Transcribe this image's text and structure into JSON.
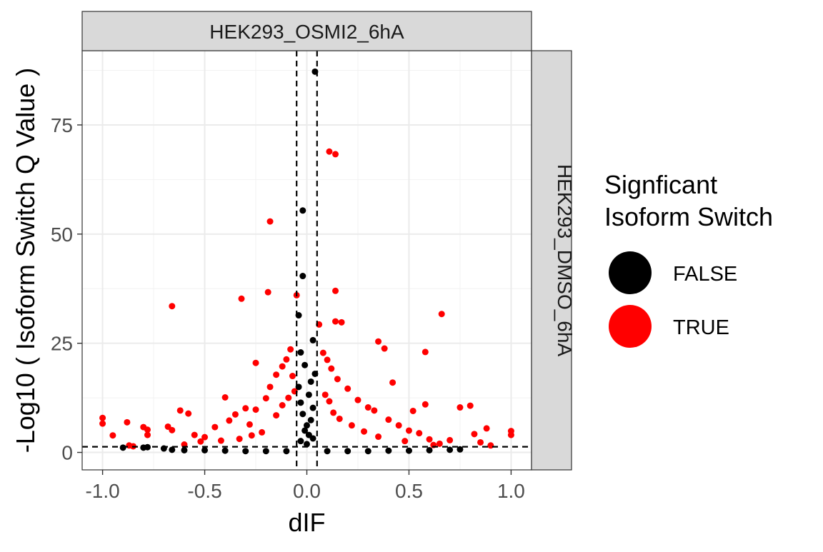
{
  "chart_data": {
    "type": "scatter",
    "facet_top": "HEK293_OSMI2_6hA",
    "facet_right": "HEK293_DMSO_6hA",
    "xlabel": "dIF",
    "ylabel": "-Log10 ( Isoform Switch Q Value )",
    "xlim": [
      -1.1,
      1.1
    ],
    "ylim": [
      -4,
      92
    ],
    "x_ticks": [
      -1.0,
      -0.5,
      0.0,
      0.5,
      1.0
    ],
    "x_tick_labels": [
      "-1.0",
      "-0.5",
      "0.0",
      "0.5",
      "1.0"
    ],
    "y_ticks": [
      0,
      25,
      50,
      75
    ],
    "y_tick_labels": [
      "0",
      "25",
      "50",
      "75"
    ],
    "grid": true,
    "vlines": [
      -0.05,
      0.05
    ],
    "hline": 1.3,
    "legend": {
      "title_lines": [
        "Signficant",
        "Isoform Switch"
      ],
      "placement": "right",
      "entries": [
        {
          "label": "FALSE",
          "color": "#000000"
        },
        {
          "label": "TRUE",
          "color": "#ff0000"
        }
      ]
    },
    "series": [
      {
        "name": "TRUE",
        "color": "#ff0000",
        "points": [
          [
            0.11,
            68.9
          ],
          [
            0.14,
            68.3
          ],
          [
            -0.18,
            52.9
          ],
          [
            0.14,
            37.0
          ],
          [
            -0.19,
            36.7
          ],
          [
            -0.05,
            36.0
          ],
          [
            -0.32,
            35.2
          ],
          [
            -0.66,
            33.5
          ],
          [
            0.66,
            31.7
          ],
          [
            0.14,
            30.0
          ],
          [
            0.17,
            29.8
          ],
          [
            0.06,
            29.3
          ],
          [
            0.35,
            25.4
          ],
          [
            0.38,
            23.8
          ],
          [
            0.58,
            23.0
          ],
          [
            -0.25,
            20.5
          ],
          [
            0.42,
            16.0
          ],
          [
            0.58,
            11.0
          ],
          [
            -1.0,
            7.9
          ],
          [
            -1.0,
            6.6
          ],
          [
            -0.95,
            3.9
          ],
          [
            -0.88,
            6.9
          ],
          [
            -0.87,
            1.6
          ],
          [
            -0.85,
            1.4
          ],
          [
            -0.8,
            5.8
          ],
          [
            -0.78,
            4.0
          ],
          [
            -0.78,
            5.2
          ],
          [
            -0.68,
            5.9
          ],
          [
            -0.66,
            5.1
          ],
          [
            -0.62,
            9.6
          ],
          [
            -0.58,
            8.9
          ],
          [
            -0.55,
            4.0
          ],
          [
            -0.5,
            3.5
          ],
          [
            -0.45,
            5.8
          ],
          [
            -0.4,
            12.6
          ],
          [
            -0.38,
            7.3
          ],
          [
            -0.35,
            8.7
          ],
          [
            -0.3,
            10.1
          ],
          [
            -0.28,
            6.4
          ],
          [
            -0.25,
            9.8
          ],
          [
            -0.2,
            12.4
          ],
          [
            -0.18,
            15.0
          ],
          [
            -0.15,
            17.8
          ],
          [
            -0.12,
            19.7
          ],
          [
            -0.1,
            21.3
          ],
          [
            -0.08,
            23.6
          ],
          [
            -0.07,
            17.5
          ],
          [
            -0.06,
            14.0
          ],
          [
            0.08,
            22.8
          ],
          [
            0.1,
            21.2
          ],
          [
            0.12,
            19.2
          ],
          [
            0.15,
            16.8
          ],
          [
            0.2,
            14.6
          ],
          [
            0.25,
            12.0
          ],
          [
            0.3,
            10.3
          ],
          [
            0.33,
            9.6
          ],
          [
            0.4,
            7.5
          ],
          [
            0.45,
            6.2
          ],
          [
            0.5,
            5.0
          ],
          [
            0.55,
            4.4
          ],
          [
            0.6,
            3.0
          ],
          [
            0.65,
            2.0
          ],
          [
            0.7,
            2.8
          ],
          [
            0.75,
            10.3
          ],
          [
            0.8,
            10.7
          ],
          [
            0.82,
            4.2
          ],
          [
            0.85,
            2.3
          ],
          [
            0.88,
            5.5
          ],
          [
            0.9,
            1.6
          ],
          [
            1.0,
            4.9
          ],
          [
            1.0,
            4.0
          ],
          [
            -0.15,
            8.5
          ],
          [
            -0.12,
            10.8
          ],
          [
            -0.09,
            12.5
          ],
          [
            0.09,
            13.2
          ],
          [
            0.11,
            11.7
          ],
          [
            0.13,
            9.1
          ],
          [
            0.16,
            7.7
          ],
          [
            0.22,
            6.2
          ],
          [
            0.28,
            4.8
          ],
          [
            -0.22,
            4.6
          ],
          [
            -0.27,
            3.9
          ],
          [
            -0.33,
            3.1
          ],
          [
            -0.42,
            2.7
          ],
          [
            0.35,
            3.6
          ],
          [
            0.48,
            2.6
          ],
          [
            0.52,
            9.5
          ],
          [
            -0.52,
            2.5
          ],
          [
            -0.6,
            1.8
          ],
          [
            0.62,
            1.7
          ]
        ]
      },
      {
        "name": "FALSE",
        "color": "#000000",
        "points": [
          [
            0.04,
            87.2
          ],
          [
            -0.02,
            55.4
          ],
          [
            -0.02,
            40.4
          ],
          [
            -0.04,
            31.4
          ],
          [
            0.03,
            25.7
          ],
          [
            -0.03,
            22.9
          ],
          [
            -0.01,
            20.0
          ],
          [
            0.04,
            18.0
          ],
          [
            0.02,
            16.2
          ],
          [
            -0.04,
            15.0
          ],
          [
            0.01,
            13.2
          ],
          [
            -0.03,
            11.4
          ],
          [
            0.03,
            10.2
          ],
          [
            -0.02,
            8.8
          ],
          [
            0.02,
            7.4
          ],
          [
            0.0,
            6.2
          ],
          [
            -0.01,
            5.0
          ],
          [
            0.01,
            4.0
          ],
          [
            0.03,
            3.2
          ],
          [
            -0.03,
            2.6
          ],
          [
            0.0,
            1.9
          ],
          [
            -0.9,
            1.1
          ],
          [
            -0.8,
            1.1
          ],
          [
            -0.78,
            1.2
          ],
          [
            -0.7,
            0.9
          ],
          [
            -0.66,
            0.6
          ],
          [
            -0.6,
            0.5
          ],
          [
            -0.5,
            0.5
          ],
          [
            -0.4,
            0.4
          ],
          [
            -0.3,
            0.3
          ],
          [
            -0.2,
            0.3
          ],
          [
            -0.1,
            0.3
          ],
          [
            0.1,
            0.3
          ],
          [
            0.2,
            0.3
          ],
          [
            0.3,
            0.3
          ],
          [
            0.4,
            0.4
          ],
          [
            0.5,
            0.4
          ],
          [
            0.6,
            0.5
          ],
          [
            0.7,
            0.6
          ],
          [
            0.75,
            0.7
          ]
        ]
      }
    ]
  }
}
